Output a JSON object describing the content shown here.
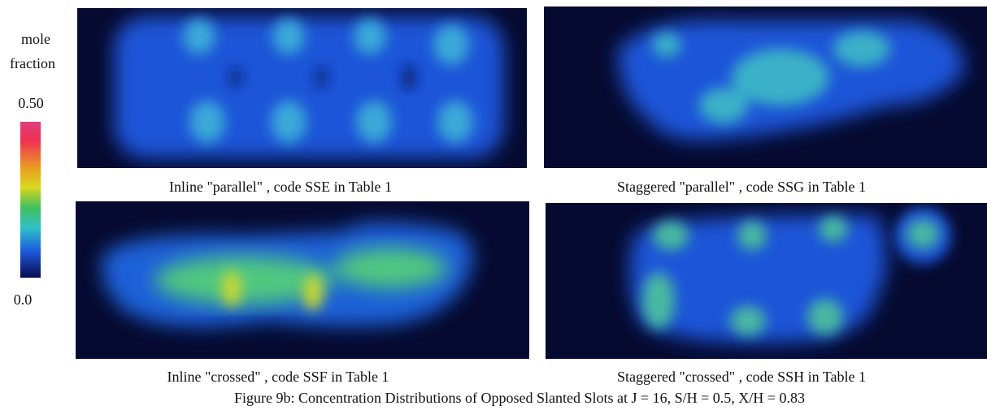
{
  "colorbar": {
    "title_lines": [
      "mole",
      "fraction"
    ],
    "max_label": "0.50",
    "min_label": "0.0"
  },
  "panels": [
    {
      "caption": "Inline \"parallel\" , code SSE in Table 1"
    },
    {
      "caption": "Staggered \"parallel\" , code SSG in Table 1"
    },
    {
      "caption": "Inline \"crossed\" , code SSF in Table 1"
    },
    {
      "caption": "Staggered \"crossed\" , code SSH in Table 1"
    }
  ],
  "figure_caption": "Figure 9b:  Concentration Distributions of Opposed Slanted Slots at J = 16, S/H = 0.5, X/H = 0.83"
}
